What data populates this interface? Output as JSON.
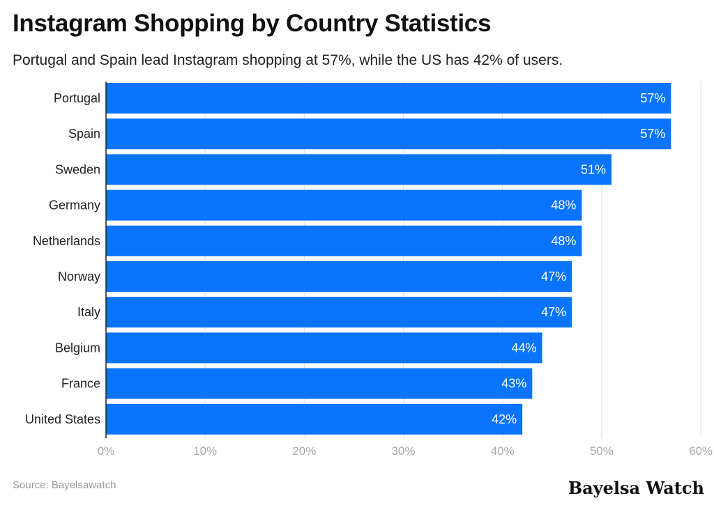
{
  "header": {
    "title": "Instagram Shopping by Country Statistics",
    "subtitle": "Portugal and Spain lead Instagram shopping at 57%, while the US has 42% of users."
  },
  "footer": {
    "source": "Source: Bayelsawatch",
    "brand": "Bayelsa Watch"
  },
  "colors": {
    "bar": "#0a74ff",
    "bar_label": "#ffffff",
    "grid": "#e3e3e3",
    "axis": "#222222",
    "tick": "#aaaaaa",
    "category": "#222222"
  },
  "chart_data": {
    "type": "bar",
    "orientation": "horizontal",
    "categories": [
      "Portugal",
      "Spain",
      "Sweden",
      "Germany",
      "Netherlands",
      "Norway",
      "Italy",
      "Belgium",
      "France",
      "United States"
    ],
    "values": [
      57,
      57,
      51,
      48,
      48,
      47,
      47,
      44,
      43,
      42
    ],
    "data_labels": [
      "57%",
      "57%",
      "51%",
      "48%",
      "48%",
      "47%",
      "47%",
      "44%",
      "43%",
      "42%"
    ],
    "xlim": [
      0,
      60
    ],
    "xticks": [
      0,
      10,
      20,
      30,
      40,
      50,
      60
    ],
    "xtick_labels": [
      "0%",
      "10%",
      "20%",
      "30%",
      "40%",
      "50%",
      "60%"
    ],
    "grid": true,
    "legend": false
  }
}
